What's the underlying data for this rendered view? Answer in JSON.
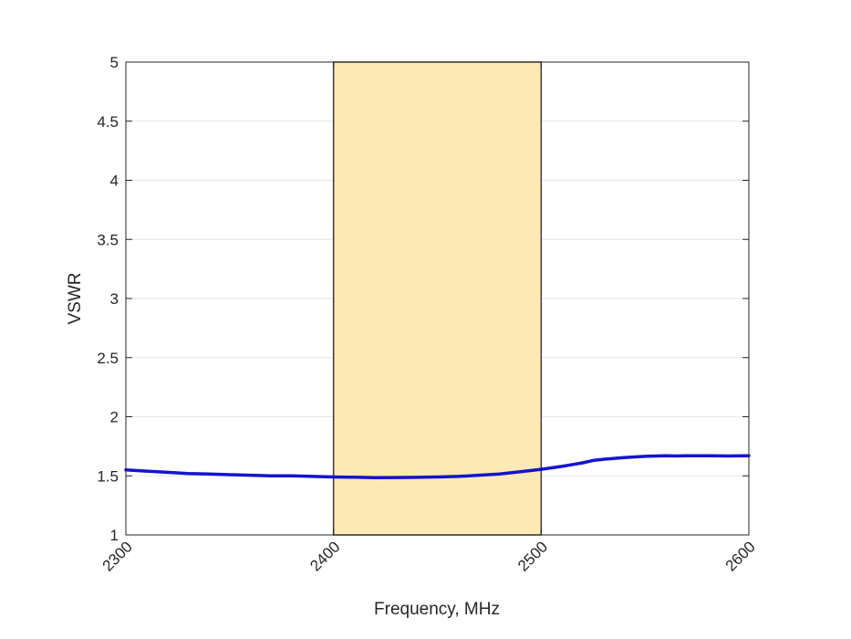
{
  "chart_data": {
    "type": "line",
    "title": "",
    "xlabel": "Frequency, MHz",
    "ylabel": "VSWR",
    "xlim": [
      2300,
      2600
    ],
    "ylim": [
      1,
      5
    ],
    "x_ticks": [
      2300,
      2400,
      2500,
      2600
    ],
    "x_tick_labels": [
      "2300",
      "2400",
      "2500",
      "2600"
    ],
    "y_ticks": [
      1,
      1.5,
      2,
      2.5,
      3,
      3.5,
      4,
      4.5,
      5
    ],
    "y_tick_labels": [
      "1",
      "1.5",
      "2",
      "2.5",
      "3",
      "3.5",
      "4",
      "4.5",
      "5"
    ],
    "grid": "horizontal",
    "highlight_band": {
      "x": [
        2400,
        2500
      ],
      "color": "#fde9b3",
      "edge_color": "#3a3a3a"
    },
    "series": [
      {
        "color": "#0000cc",
        "x": [
          2300,
          2310,
          2320,
          2330,
          2340,
          2350,
          2360,
          2370,
          2380,
          2390,
          2400,
          2410,
          2420,
          2430,
          2440,
          2450,
          2460,
          2470,
          2480,
          2490,
          2500,
          2510,
          2520,
          2525,
          2530,
          2540,
          2550,
          2560,
          2565,
          2570,
          2580,
          2590,
          2600
        ],
        "y": [
          1.55,
          1.54,
          1.53,
          1.52,
          1.515,
          1.51,
          1.505,
          1.5,
          1.5,
          1.495,
          1.49,
          1.488,
          1.485,
          1.486,
          1.487,
          1.49,
          1.495,
          1.505,
          1.515,
          1.535,
          1.555,
          1.58,
          1.61,
          1.63,
          1.64,
          1.655,
          1.665,
          1.67,
          1.668,
          1.67,
          1.67,
          1.668,
          1.67
        ]
      }
    ]
  }
}
